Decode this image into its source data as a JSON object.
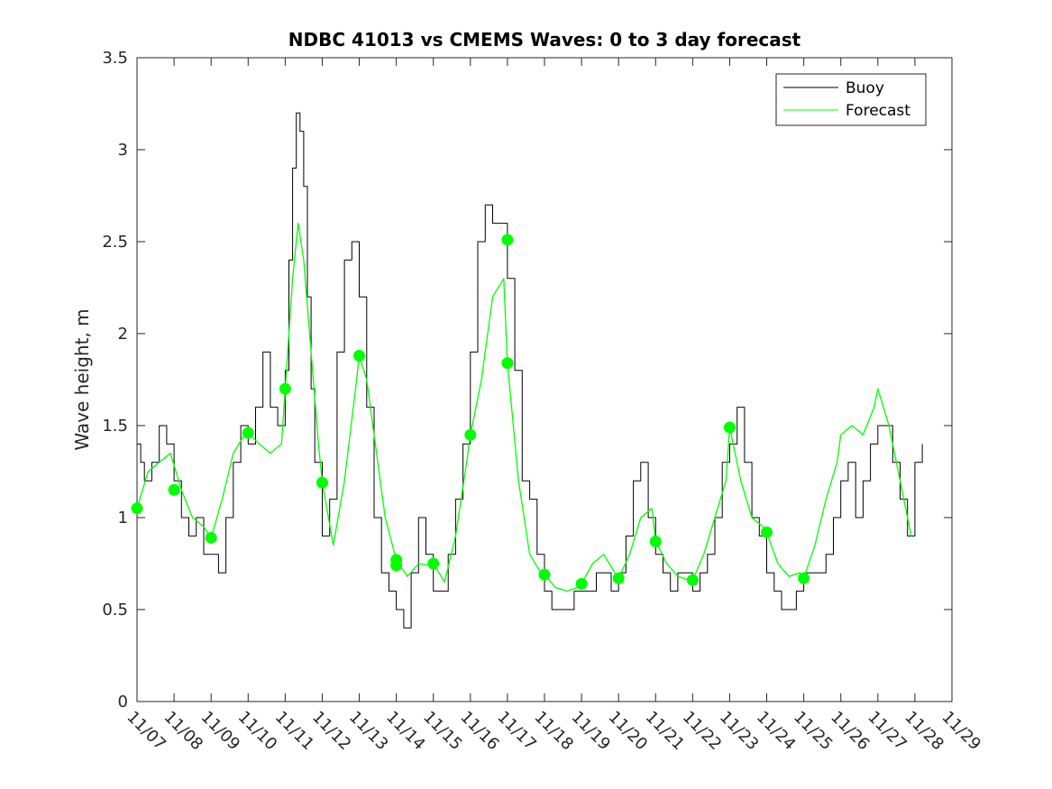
{
  "chart_data": {
    "type": "line",
    "title": "NDBC 41013 vs CMEMS Waves: 0 to 3 day forecast",
    "xlabel": "",
    "ylabel": "Wave height, m",
    "xlim": [
      0,
      22
    ],
    "ylim": [
      0,
      3.5
    ],
    "yticks": [
      0,
      0.5,
      1,
      1.5,
      2,
      2.5,
      3,
      3.5
    ],
    "ytick_labels": [
      "0",
      "0.5",
      "1",
      "1.5",
      "2",
      "2.5",
      "3",
      "3.5"
    ],
    "xticks": [
      0,
      1,
      2,
      3,
      4,
      5,
      6,
      7,
      8,
      9,
      10,
      11,
      12,
      13,
      14,
      15,
      16,
      17,
      18,
      19,
      20,
      21,
      22
    ],
    "xtick_labels": [
      "11/07",
      "11/08",
      "11/09",
      "11/10",
      "11/11",
      "11/12",
      "11/13",
      "11/14",
      "11/15",
      "11/16",
      "11/17",
      "11/18",
      "11/19",
      "11/20",
      "11/21",
      "11/22",
      "11/23",
      "11/24",
      "11/25",
      "11/26",
      "11/27",
      "11/28",
      "11/29"
    ],
    "grid": false,
    "legend": {
      "placement": "top-right",
      "entries": [
        "Buoy",
        "Forecast"
      ]
    },
    "colors": {
      "buoy": "#000000",
      "forecast": "#00ff00"
    },
    "series": [
      {
        "name": "Buoy",
        "x": [
          0,
          0.1,
          0.2,
          0.4,
          0.6,
          0.8,
          1.0,
          1.2,
          1.4,
          1.6,
          1.8,
          2.0,
          2.2,
          2.4,
          2.6,
          2.8,
          3.0,
          3.2,
          3.4,
          3.6,
          3.8,
          4.0,
          4.1,
          4.2,
          4.3,
          4.4,
          4.5,
          4.6,
          4.7,
          4.8,
          5.0,
          5.2,
          5.4,
          5.6,
          5.8,
          6.0,
          6.2,
          6.4,
          6.6,
          6.8,
          7.0,
          7.2,
          7.4,
          7.6,
          7.8,
          8.0,
          8.2,
          8.4,
          8.6,
          8.8,
          9.0,
          9.2,
          9.4,
          9.6,
          9.8,
          10.0,
          10.2,
          10.4,
          10.6,
          10.8,
          11.0,
          11.2,
          11.4,
          11.6,
          11.8,
          12.0,
          12.2,
          12.4,
          12.6,
          12.8,
          13.0,
          13.2,
          13.4,
          13.6,
          13.8,
          14.0,
          14.2,
          14.4,
          14.6,
          14.8,
          15.0,
          15.2,
          15.4,
          15.6,
          15.8,
          16.0,
          16.2,
          16.4,
          16.6,
          16.8,
          17.0,
          17.2,
          17.4,
          17.6,
          17.8,
          18.0,
          18.2,
          18.4,
          18.6,
          18.8,
          19.0,
          19.2,
          19.4,
          19.6,
          19.8,
          20.0,
          20.2,
          20.4,
          20.6,
          20.8,
          21.0,
          21.2
        ],
        "values": [
          1.4,
          1.3,
          1.2,
          1.3,
          1.5,
          1.4,
          1.2,
          1.0,
          0.9,
          1.0,
          0.8,
          0.8,
          0.7,
          1.0,
          1.3,
          1.5,
          1.4,
          1.6,
          1.9,
          1.6,
          1.5,
          1.8,
          2.4,
          2.9,
          3.2,
          3.1,
          2.8,
          2.2,
          1.7,
          1.3,
          0.9,
          1.1,
          1.9,
          2.4,
          2.5,
          2.2,
          1.6,
          1.0,
          0.7,
          0.6,
          0.5,
          0.4,
          0.7,
          1.0,
          0.8,
          0.6,
          0.6,
          0.8,
          1.1,
          1.4,
          1.9,
          2.5,
          2.7,
          2.6,
          2.6,
          2.3,
          1.8,
          1.2,
          1.1,
          0.8,
          0.6,
          0.5,
          0.5,
          0.5,
          0.6,
          0.6,
          0.6,
          0.7,
          0.7,
          0.6,
          0.7,
          0.9,
          1.2,
          1.3,
          1.0,
          0.8,
          0.7,
          0.6,
          0.7,
          0.7,
          0.6,
          0.7,
          0.8,
          1.0,
          1.3,
          1.4,
          1.6,
          1.3,
          1.0,
          0.9,
          0.7,
          0.6,
          0.5,
          0.5,
          0.6,
          0.7,
          0.7,
          0.7,
          0.8,
          1.0,
          1.2,
          1.3,
          1.0,
          1.2,
          1.4,
          1.5,
          1.5,
          1.3,
          1.1,
          0.9,
          1.3,
          1.4
        ]
      },
      {
        "name": "Forecast",
        "x": [
          0,
          0.3,
          0.6,
          0.9,
          1.2,
          1.5,
          1.8,
          2.0,
          2.3,
          2.6,
          2.9,
          3.0,
          3.3,
          3.6,
          3.9,
          4.0,
          4.2,
          4.35,
          4.5,
          4.7,
          4.9,
          5.0,
          5.3,
          5.6,
          5.9,
          6.0,
          6.2,
          6.4,
          6.7,
          7.0,
          7.3,
          7.6,
          7.9,
          8.0,
          8.3,
          8.6,
          8.9,
          9.0,
          9.3,
          9.6,
          9.9,
          10.0,
          10.3,
          10.6,
          10.9,
          11.0,
          11.3,
          11.6,
          11.9,
          12.0,
          12.3,
          12.6,
          12.9,
          13.0,
          13.3,
          13.6,
          13.9,
          14.0,
          14.3,
          14.6,
          14.9,
          15.0,
          15.3,
          15.6,
          15.9,
          16.0,
          16.3,
          16.6,
          16.9,
          17.0,
          17.3,
          17.6,
          17.9,
          18.0,
          18.3,
          18.6,
          18.9,
          19.0,
          19.3,
          19.6,
          19.9,
          20.0,
          20.3,
          20.6,
          20.9
        ],
        "values": [
          1.05,
          1.25,
          1.3,
          1.35,
          1.15,
          1.0,
          0.95,
          0.89,
          1.1,
          1.35,
          1.45,
          1.46,
          1.4,
          1.35,
          1.4,
          1.7,
          2.3,
          2.6,
          2.4,
          1.9,
          1.4,
          1.19,
          0.85,
          1.2,
          1.7,
          1.88,
          1.75,
          1.45,
          1.0,
          0.77,
          0.68,
          0.75,
          0.74,
          0.75,
          0.65,
          0.9,
          1.3,
          1.45,
          1.75,
          2.2,
          2.3,
          1.84,
          1.2,
          0.8,
          0.7,
          0.69,
          0.62,
          0.6,
          0.62,
          0.64,
          0.75,
          0.8,
          0.7,
          0.67,
          0.8,
          1.0,
          1.05,
          0.87,
          0.75,
          0.68,
          0.66,
          0.66,
          0.8,
          1.0,
          1.2,
          1.49,
          1.2,
          1.0,
          0.95,
          0.92,
          0.75,
          0.68,
          0.7,
          0.67,
          0.85,
          1.1,
          1.3,
          1.45,
          1.5,
          1.45,
          1.6,
          1.7,
          1.5,
          1.2,
          0.9
        ]
      }
    ],
    "forecast_markers": {
      "x": [
        0,
        1,
        2,
        3,
        4,
        5,
        6,
        7,
        7,
        8,
        9,
        10,
        10,
        11,
        12,
        13,
        14,
        15,
        16,
        17,
        18
      ],
      "values": [
        1.05,
        1.15,
        0.89,
        1.46,
        1.7,
        1.19,
        1.88,
        0.77,
        0.74,
        0.75,
        1.45,
        2.51,
        1.84,
        0.69,
        0.64,
        0.67,
        0.87,
        0.66,
        1.49,
        0.92,
        0.67
      ]
    }
  }
}
